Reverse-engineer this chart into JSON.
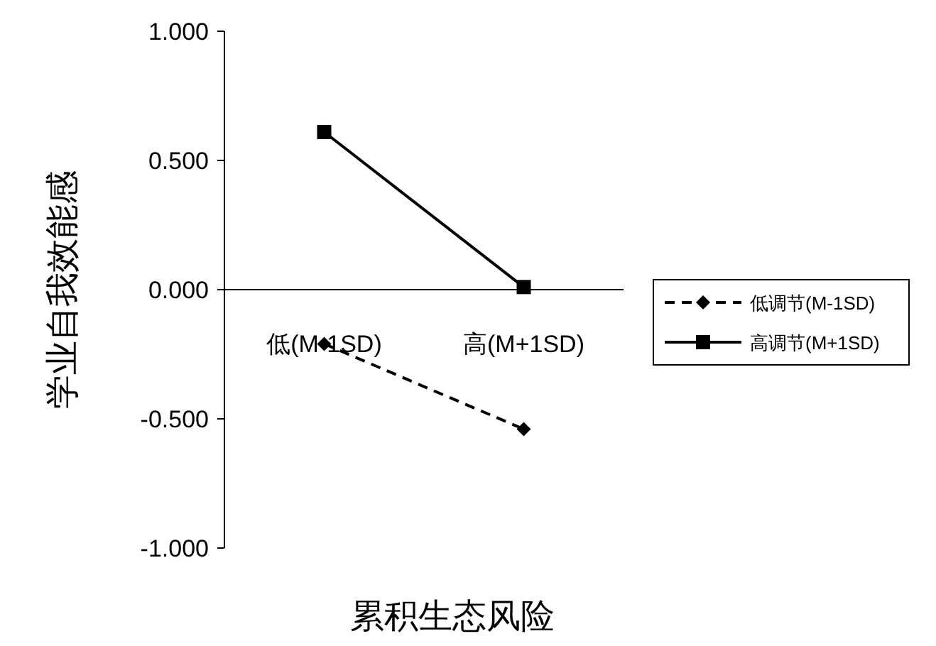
{
  "chart_data": {
    "type": "line",
    "xlabel": "累积生态风险",
    "ylabel": "学业自我效能感",
    "categories": [
      "低(M-1SD)",
      "高(M+1SD)"
    ],
    "ylim": [
      -1,
      1
    ],
    "yticks": [
      {
        "value": -1,
        "label": "-1.000"
      },
      {
        "value": -0.5,
        "label": "-0.500"
      },
      {
        "value": 0,
        "label": "0.000"
      },
      {
        "value": 0.5,
        "label": "0.500"
      },
      {
        "value": 1,
        "label": "1.000"
      }
    ],
    "grid": false,
    "legend": "right",
    "series": [
      {
        "name": "低调节(M-1SD)",
        "color": "#000000",
        "marker": "diamond",
        "line_style": "dashed",
        "values": [
          -0.21,
          -0.54
        ]
      },
      {
        "name": "高调节(M+1SD)",
        "color": "#000000",
        "marker": "square",
        "line_style": "solid",
        "values": [
          0.61,
          0.01
        ]
      }
    ]
  }
}
